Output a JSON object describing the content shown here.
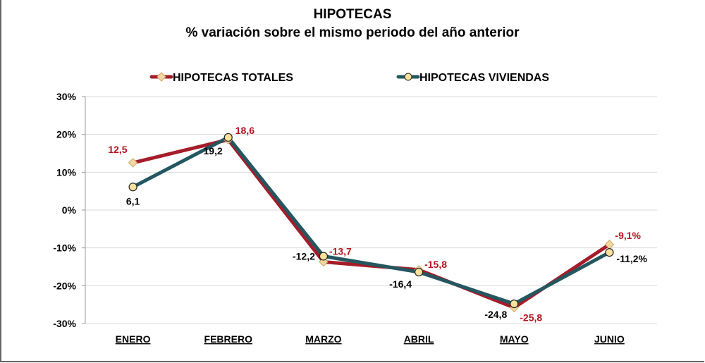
{
  "chart_data": {
    "type": "line",
    "title": "HIPOTECAS",
    "subtitle": "% variación sobre el mismo periodo del año anterior",
    "categories": [
      "ENERO",
      "FEBRERO",
      "MARZO",
      "ABRIL",
      "MAYO",
      "JUNIO"
    ],
    "ylim": [
      -30,
      30
    ],
    "yticks": [
      30,
      20,
      10,
      0,
      -10,
      -20,
      -30
    ],
    "ytick_labels": [
      "30%",
      "20%",
      "10%",
      "0%",
      "-10%",
      "-20%",
      "-30%"
    ],
    "grid": true,
    "legend_placement": "top",
    "series": [
      {
        "name": "HIPOTECAS TOTALES",
        "color": "#A51C2A",
        "marker": "diamond",
        "marker_color": "#F2D7A0",
        "values": [
          12.5,
          18.6,
          -13.7,
          -15.8,
          -25.8,
          -9.1
        ],
        "labels": [
          "12,5",
          "18,6",
          "-13,7",
          "-15,8",
          "-25,8",
          "-9,1%"
        ],
        "label_color": "#B0141E"
      },
      {
        "name": "HIPOTECAS VIVIENDAS",
        "color": "#24575F",
        "marker": "circle",
        "marker_color": "#FBE29A",
        "values": [
          6.1,
          19.2,
          -12.2,
          -16.4,
          -24.8,
          -11.2
        ],
        "labels": [
          "6,1",
          "19,2",
          "-12,2",
          "-16,4",
          "-24,8",
          "-11,2%"
        ],
        "label_color": "#000000"
      }
    ]
  }
}
